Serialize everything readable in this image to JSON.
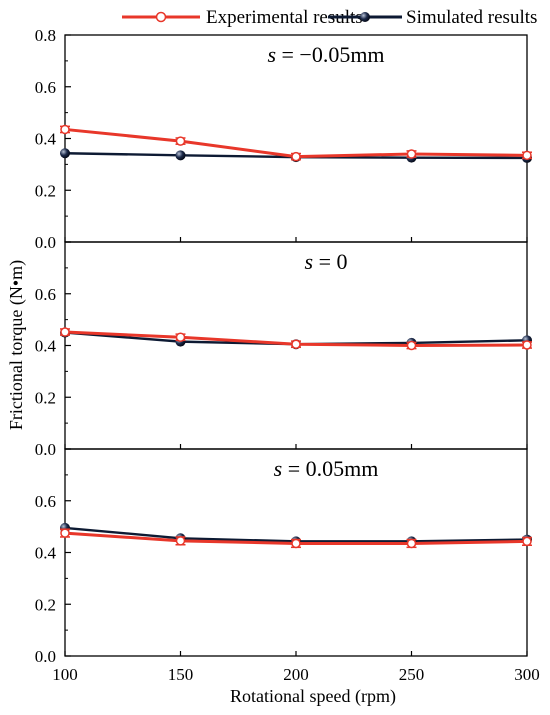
{
  "chart_data": {
    "type": "line",
    "xlabel": "Rotational speed (rpm)",
    "ylabel": "Frictional torque (N•m)",
    "x": [
      100,
      150,
      200,
      250,
      300
    ],
    "xlim": [
      100,
      300
    ],
    "ylim": [
      0,
      0.8
    ],
    "x_ticks": [
      "100",
      "150",
      "200",
      "250",
      "300"
    ],
    "y_ticks": [
      "0.0",
      "0.2",
      "0.4",
      "0.6",
      "0.8"
    ],
    "grid": false,
    "legend_position": "top",
    "legend": [
      {
        "name": "Experimental results",
        "color": "#e8372a",
        "marker": "open-circle"
      },
      {
        "name": "Simulated results",
        "color": "#0d1a33",
        "marker": "filled-sphere"
      }
    ],
    "panels": [
      {
        "label_var": "s",
        "label_rest": " = −0.05mm",
        "series": [
          {
            "name": "Experimental results",
            "values": [
              0.435,
              0.39,
              0.33,
              0.34,
              0.335
            ],
            "errors": [
              0.012,
              0.012,
              0.012,
              0.012,
              0.012
            ]
          },
          {
            "name": "Simulated results",
            "values": [
              0.343,
              0.335,
              0.328,
              0.326,
              0.325
            ]
          }
        ]
      },
      {
        "label_var": "s",
        "label_rest": " = 0",
        "series": [
          {
            "name": "Experimental results",
            "values": [
              0.452,
              0.432,
              0.405,
              0.4,
              0.402
            ],
            "errors": [
              0.012,
              0.012,
              0.012,
              0.012,
              0.012
            ]
          },
          {
            "name": "Simulated results",
            "values": [
              0.45,
              0.415,
              0.405,
              0.41,
              0.42
            ]
          }
        ]
      },
      {
        "label_var": "s",
        "label_rest": " = 0.05mm",
        "series": [
          {
            "name": "Experimental results",
            "values": [
              0.475,
              0.445,
              0.435,
              0.435,
              0.443
            ],
            "errors": [
              0.015,
              0.015,
              0.015,
              0.015,
              0.015
            ]
          },
          {
            "name": "Simulated results",
            "values": [
              0.495,
              0.455,
              0.443,
              0.443,
              0.45
            ]
          }
        ]
      }
    ]
  }
}
